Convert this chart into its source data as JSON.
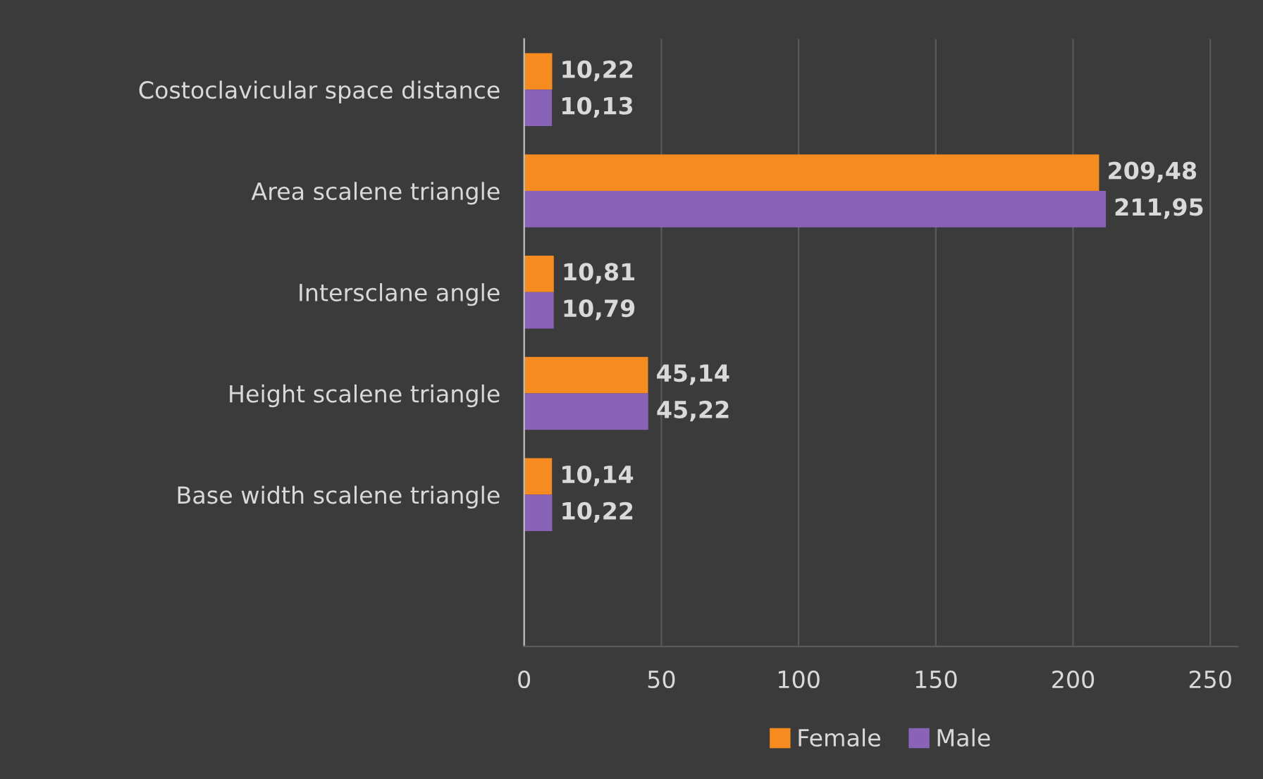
{
  "chart_data": {
    "type": "bar",
    "orientation": "horizontal",
    "categories": [
      "Costoclavicular space distance",
      "Area scalene triangle",
      "Intersclane angle",
      "Height scalene triangle",
      "Base width scalene triangle",
      null
    ],
    "series": [
      {
        "name": "Female",
        "color": "#f68b1f",
        "values": [
          10.22,
          209.48,
          10.81,
          45.14,
          10.14,
          null
        ],
        "value_labels": [
          "10,22",
          "209,48",
          "10,81",
          "45,14",
          "10,14",
          null
        ]
      },
      {
        "name": "Male",
        "color": "#8a63b8",
        "values": [
          10.13,
          211.95,
          10.79,
          45.22,
          10.22,
          null
        ],
        "value_labels": [
          "10,13",
          "211,95",
          "10,79",
          "45,22",
          "10,22",
          null
        ]
      }
    ],
    "xlim": [
      0,
      260
    ],
    "xticks": [
      0,
      50,
      100,
      150,
      200,
      250
    ],
    "grid": "x",
    "legend": "bottom"
  }
}
